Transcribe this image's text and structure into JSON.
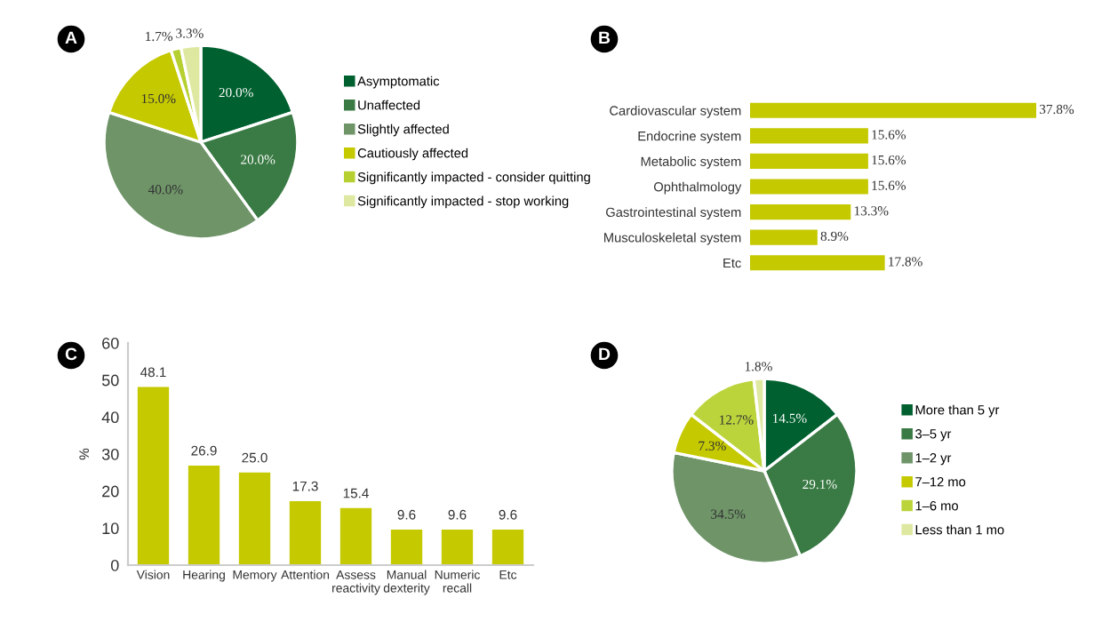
{
  "chart_data": [
    {
      "type": "pie",
      "annotations": [
        "A"
      ],
      "legend": "right",
      "categories": [
        "Asymptomatic",
        "Unaffected",
        "Slightly affected",
        "Cautiously affected",
        "Significantly impacted - consider quitting",
        "Significantly impacted - stop working"
      ],
      "values": [
        20.0,
        20.0,
        40.0,
        15.0,
        1.7,
        3.3
      ],
      "value_labels": [
        "20.0%",
        "20.0%",
        "40.0%",
        "15.0%",
        "1.7%",
        "3.3%"
      ],
      "colors": [
        "#00602f",
        "#3a7a44",
        "#6e9468",
        "#c5c900",
        "#b5d030",
        "#dfe8a0"
      ]
    },
    {
      "type": "bar",
      "orientation": "horizontal",
      "annotations": [
        "B"
      ],
      "categories": [
        "Cardiovascular system",
        "Endocrine system",
        "Metabolic system",
        "Ophthalmology",
        "Gastrointestinal system",
        "Musculoskeletal system",
        "Etc"
      ],
      "values": [
        37.8,
        15.6,
        15.6,
        15.6,
        13.3,
        8.9,
        17.8
      ],
      "value_labels": [
        "37.8%",
        "15.6%",
        "15.6%",
        "15.6%",
        "13.3%",
        "8.9%",
        "17.8%"
      ],
      "color": "#c5c900"
    },
    {
      "type": "bar",
      "annotations": [
        "C"
      ],
      "ylabel": "%",
      "categories": [
        "Vision",
        "Hearing",
        "Memory",
        "Attention",
        "Assess\nreactivity",
        "Manual\ndexterity",
        "Numeric\nrecall",
        "Etc"
      ],
      "values": [
        48.1,
        26.9,
        25.0,
        17.3,
        15.4,
        9.6,
        9.6,
        9.6
      ],
      "value_labels": [
        "48.1",
        "26.9",
        "25.0",
        "17.3",
        "15.4",
        "9.6",
        "9.6",
        "9.6"
      ],
      "color": "#c5c900",
      "ylim": [
        0,
        60
      ],
      "yticks": [
        0,
        10,
        20,
        30,
        40,
        50,
        60
      ]
    },
    {
      "type": "pie",
      "annotations": [
        "D"
      ],
      "legend": "right",
      "categories": [
        "More than 5 yr",
        "3–5 yr",
        "1–2 yr",
        "7–12 mo",
        "1–6 mo",
        "Less than 1 mo"
      ],
      "values": [
        14.5,
        29.1,
        34.5,
        7.3,
        12.7,
        1.8
      ],
      "value_labels": [
        "14.5%",
        "29.1%",
        "34.5%",
        "7.3%",
        "12.7%",
        "1.8%"
      ],
      "colors": [
        "#00602f",
        "#3a7a44",
        "#6e9468",
        "#c5c900",
        "#bcd43c",
        "#dfe8a0"
      ]
    }
  ]
}
